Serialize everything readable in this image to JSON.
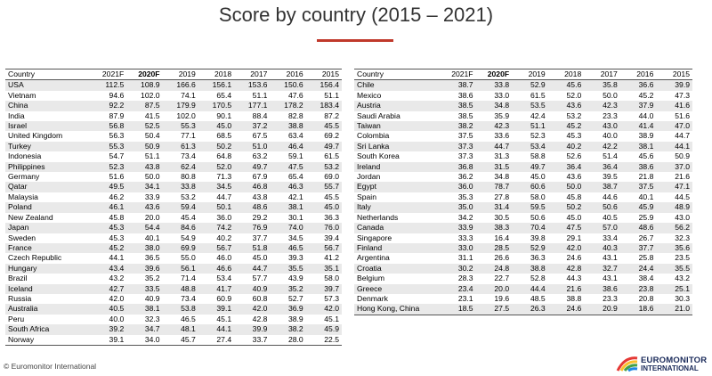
{
  "title": "Score by country (2015 – 2021)",
  "footer": "© Euromonitor International",
  "logo": [
    "EUROMONITOR",
    "INTERNATIONAL"
  ],
  "tables": [
    {
      "header": [
        "Country",
        "2021F",
        "2020F",
        "2019",
        "2018",
        "2017",
        "2016",
        "2015"
      ],
      "rows": [
        [
          "USA",
          "112.5",
          "108.9",
          "166.6",
          "156.1",
          "153.6",
          "150.6",
          "156.4"
        ],
        [
          "Vietnam",
          "94.6",
          "102.0",
          "74.1",
          "65.4",
          "51.1",
          "47.6",
          "51.1"
        ],
        [
          "China",
          "92.2",
          "87.5",
          "179.9",
          "170.5",
          "177.1",
          "178.2",
          "183.4"
        ],
        [
          "India",
          "87.9",
          "41.5",
          "102.0",
          "90.1",
          "88.4",
          "82.8",
          "87.2"
        ],
        [
          "Israel",
          "56.8",
          "52.5",
          "55.3",
          "45.0",
          "37.2",
          "38.8",
          "45.5"
        ],
        [
          "United Kingdom",
          "56.3",
          "50.4",
          "77.1",
          "68.5",
          "67.5",
          "63.4",
          "69.2"
        ],
        [
          "Turkey",
          "55.3",
          "50.9",
          "61.3",
          "50.2",
          "51.0",
          "46.4",
          "49.7"
        ],
        [
          "Indonesia",
          "54.7",
          "51.1",
          "73.4",
          "64.8",
          "63.2",
          "59.1",
          "61.5"
        ],
        [
          "Philippines",
          "52.3",
          "43.8",
          "62.4",
          "52.0",
          "49.7",
          "47.5",
          "53.2"
        ],
        [
          "Germany",
          "51.6",
          "50.0",
          "80.8",
          "71.3",
          "67.9",
          "65.4",
          "69.0"
        ],
        [
          "Qatar",
          "49.5",
          "34.1",
          "33.8",
          "34.5",
          "46.8",
          "46.3",
          "55.7"
        ],
        [
          "Malaysia",
          "46.2",
          "33.9",
          "53.2",
          "44.7",
          "43.8",
          "42.1",
          "45.5"
        ],
        [
          "Poland",
          "46.1",
          "43.6",
          "59.4",
          "50.1",
          "48.6",
          "38.1",
          "45.0"
        ],
        [
          "New Zealand",
          "45.8",
          "20.0",
          "45.4",
          "36.0",
          "29.2",
          "30.1",
          "36.3"
        ],
        [
          "Japan",
          "45.3",
          "54.4",
          "84.6",
          "74.2",
          "76.9",
          "74.0",
          "76.0"
        ],
        [
          "Sweden",
          "45.3",
          "40.1",
          "54.9",
          "40.2",
          "37.7",
          "34.5",
          "39.4"
        ],
        [
          "France",
          "45.2",
          "38.0",
          "69.9",
          "56.7",
          "51.8",
          "46.5",
          "56.7"
        ],
        [
          "Czech Republic",
          "44.1",
          "36.5",
          "55.0",
          "46.0",
          "45.0",
          "39.3",
          "41.2"
        ],
        [
          "Hungary",
          "43.4",
          "39.6",
          "56.1",
          "46.6",
          "44.7",
          "35.5",
          "35.1"
        ],
        [
          "Brazil",
          "43.2",
          "35.2",
          "71.4",
          "53.4",
          "57.7",
          "43.9",
          "58.0"
        ],
        [
          "Iceland",
          "42.7",
          "33.5",
          "48.8",
          "41.7",
          "40.9",
          "35.2",
          "39.7"
        ],
        [
          "Russia",
          "42.0",
          "40.9",
          "73.4",
          "60.9",
          "60.8",
          "52.7",
          "57.3"
        ],
        [
          "Australia",
          "40.5",
          "38.1",
          "53.8",
          "39.1",
          "42.0",
          "36.9",
          "42.0"
        ],
        [
          "Peru",
          "40.0",
          "32.3",
          "46.5",
          "45.1",
          "42.8",
          "38.9",
          "45.1"
        ],
        [
          "South Africa",
          "39.2",
          "34.7",
          "48.1",
          "44.1",
          "39.9",
          "38.2",
          "45.9"
        ],
        [
          "Norway",
          "39.1",
          "34.0",
          "45.7",
          "27.4",
          "33.7",
          "28.0",
          "22.5"
        ]
      ]
    },
    {
      "header": [
        "Country",
        "2021F",
        "2020F",
        "2019",
        "2018",
        "2017",
        "2016",
        "2015"
      ],
      "rows": [
        [
          "Chile",
          "38.7",
          "33.8",
          "52.9",
          "45.6",
          "35.8",
          "36.6",
          "39.9"
        ],
        [
          "Mexico",
          "38.6",
          "33.0",
          "61.5",
          "52.0",
          "50.0",
          "45.2",
          "47.3"
        ],
        [
          "Austria",
          "38.5",
          "34.8",
          "53.5",
          "43.6",
          "42.3",
          "37.9",
          "41.6"
        ],
        [
          "Saudi Arabia",
          "38.5",
          "35.9",
          "42.4",
          "53.2",
          "23.3",
          "44.0",
          "51.6"
        ],
        [
          "Taiwan",
          "38.2",
          "42.3",
          "51.1",
          "45.2",
          "43.0",
          "41.4",
          "47.0"
        ],
        [
          "Colombia",
          "37.5",
          "33.6",
          "52.3",
          "45.3",
          "40.0",
          "38.9",
          "44.7"
        ],
        [
          "Sri Lanka",
          "37.3",
          "44.7",
          "53.4",
          "40.2",
          "42.2",
          "38.1",
          "44.1"
        ],
        [
          "South Korea",
          "37.3",
          "31.3",
          "58.8",
          "52.6",
          "51.4",
          "45.6",
          "50.9"
        ],
        [
          "Ireland",
          "36.8",
          "31.5",
          "49.7",
          "36.4",
          "36.4",
          "38.6",
          "37.0"
        ],
        [
          "Jordan",
          "36.2",
          "34.8",
          "45.0",
          "43.6",
          "39.5",
          "21.8",
          "21.6"
        ],
        [
          "Egypt",
          "36.0",
          "78.7",
          "60.6",
          "50.0",
          "38.7",
          "37.5",
          "47.1"
        ],
        [
          "Spain",
          "35.3",
          "27.8",
          "58.0",
          "45.8",
          "44.6",
          "40.1",
          "44.5"
        ],
        [
          "Italy",
          "35.0",
          "31.4",
          "59.5",
          "50.2",
          "50.6",
          "45.9",
          "48.9"
        ],
        [
          "Netherlands",
          "34.2",
          "30.5",
          "50.6",
          "45.0",
          "40.5",
          "25.9",
          "43.0"
        ],
        [
          "Canada",
          "33.9",
          "38.3",
          "70.4",
          "47.5",
          "57.0",
          "48.6",
          "56.2"
        ],
        [
          "Singapore",
          "33.3",
          "16.4",
          "39.8",
          "29.1",
          "33.4",
          "26.7",
          "32.3"
        ],
        [
          "Finland",
          "33.0",
          "28.5",
          "52.9",
          "42.0",
          "40.3",
          "37.7",
          "35.6"
        ],
        [
          "Argentina",
          "31.1",
          "26.6",
          "36.3",
          "24.6",
          "43.1",
          "25.8",
          "23.5"
        ],
        [
          "Croatia",
          "30.2",
          "24.8",
          "38.8",
          "42.8",
          "32.7",
          "24.4",
          "35.5"
        ],
        [
          "Belgium",
          "28.3",
          "22.7",
          "52.8",
          "44.3",
          "43.1",
          "38.4",
          "43.2"
        ],
        [
          "Greece",
          "23.4",
          "20.0",
          "44.4",
          "21.6",
          "38.6",
          "23.8",
          "25.1"
        ],
        [
          "Denmark",
          "23.1",
          "19.6",
          "48.5",
          "38.8",
          "23.3",
          "20.8",
          "30.3"
        ],
        [
          "Hong Kong, China",
          "18.5",
          "27.5",
          "26.3",
          "24.6",
          "20.9",
          "18.6",
          "21.0"
        ]
      ]
    }
  ]
}
